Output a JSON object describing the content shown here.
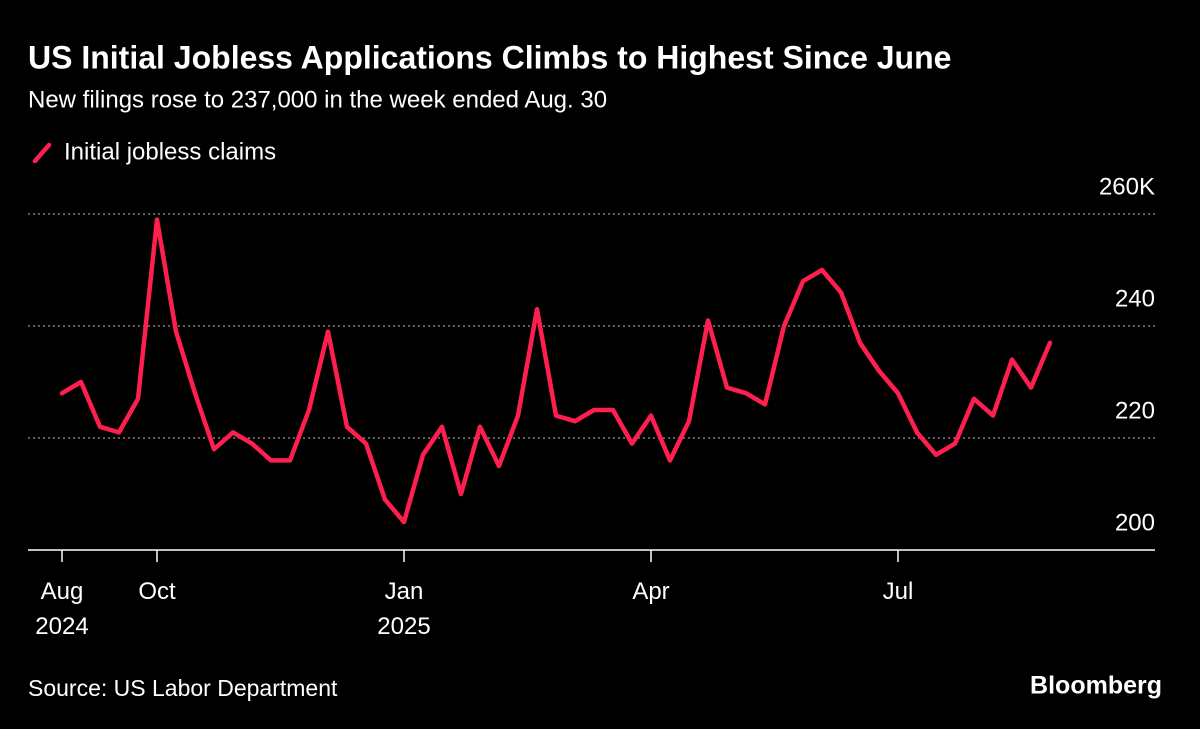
{
  "chart_data": {
    "type": "line",
    "title": "US Initial Jobless Applications Climbs to Highest Since June",
    "subtitle": "New filings rose to 237,000 in the week ended Aug. 30",
    "categories": [
      "Aug 2024",
      null,
      null,
      null,
      null,
      "Oct",
      null,
      null,
      null,
      null,
      null,
      null,
      null,
      null,
      null,
      null,
      null,
      null,
      "Jan 2025",
      null,
      null,
      null,
      null,
      null,
      null,
      null,
      null,
      null,
      null,
      null,
      null,
      "Apr",
      null,
      null,
      null,
      null,
      null,
      null,
      null,
      null,
      null,
      null,
      null,
      null,
      "Jul",
      null,
      null,
      null,
      null,
      null,
      null,
      null,
      null
    ],
    "series": [
      {
        "name": "Initial jobless claims",
        "color": "#ff1f4f",
        "values": [
          228,
          230,
          222,
          221,
          227,
          259,
          239,
          228,
          218,
          221,
          219,
          216,
          216,
          225,
          239,
          222,
          219,
          209,
          205,
          217,
          222,
          210,
          222,
          215,
          224,
          243,
          224,
          223,
          225,
          225,
          219,
          224,
          216,
          223,
          241,
          229,
          228,
          226,
          240,
          248,
          250,
          246,
          237,
          232,
          228,
          221,
          217,
          219,
          227,
          224,
          234,
          229,
          237
        ]
      }
    ],
    "ylim": [
      200,
      260
    ],
    "yticks": [
      200,
      220,
      240,
      {
        "value": 260,
        "label": "260K"
      }
    ],
    "grid": true,
    "source": "Source: US Labor Department",
    "logo": "Bloomberg"
  }
}
